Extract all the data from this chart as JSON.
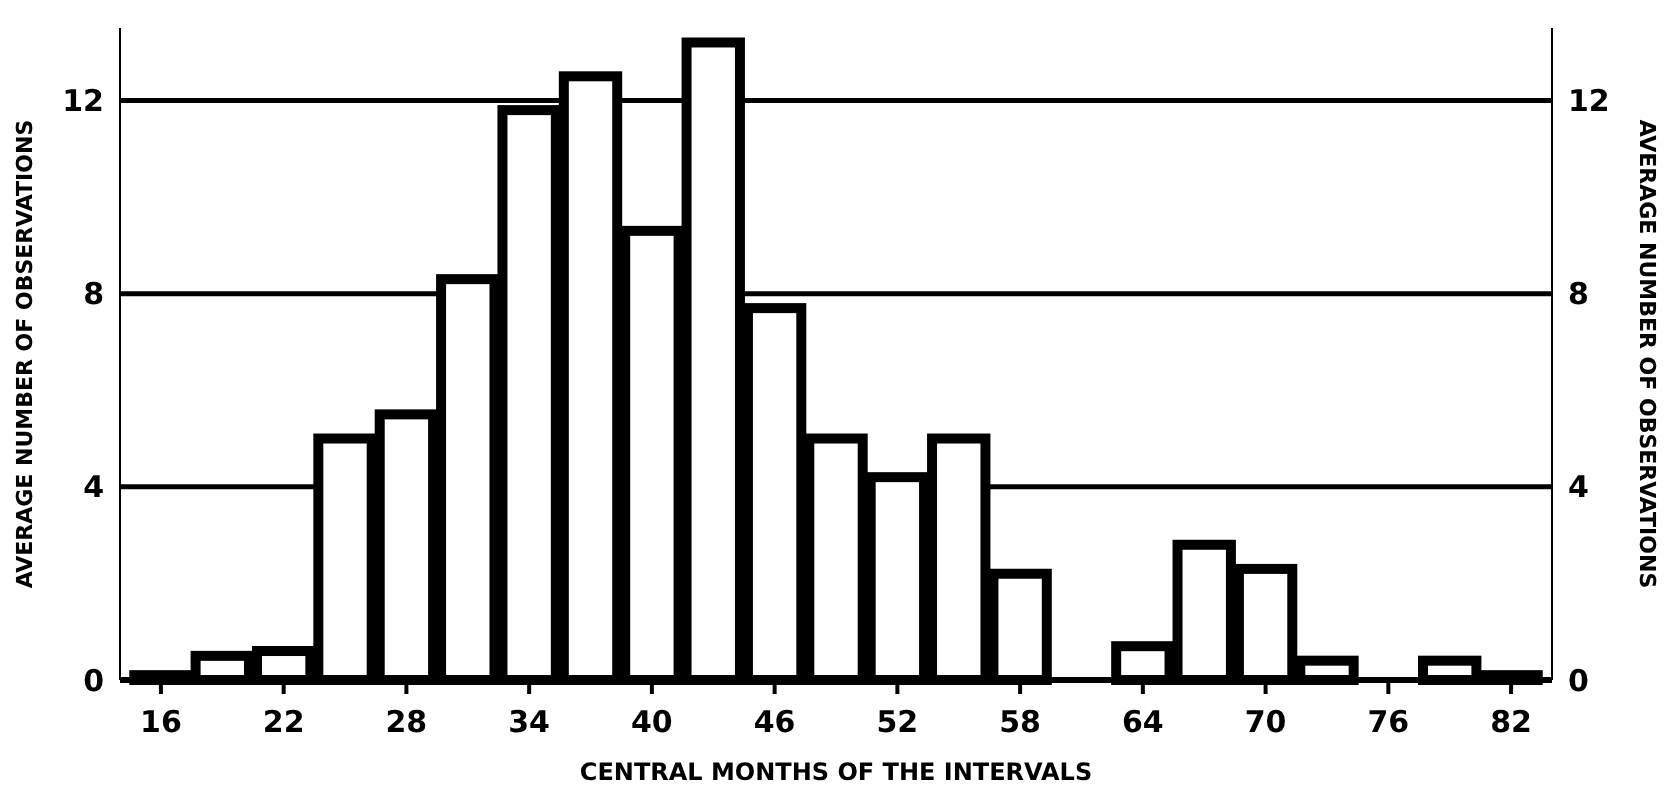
{
  "chart_data": {
    "type": "histogram",
    "xlabel": "CENTRAL MONTHS OF THE INTERVALS",
    "ylabel": "AVERAGE NUMBER OF OBSERVATIONS",
    "y2label": "AVERAGE NUMBER OF OBSERVATIONS",
    "bins": [
      14.5,
      17.5,
      20.5,
      23.5,
      26.5,
      29.5,
      32.5,
      35.5,
      38.5,
      41.5,
      44.5,
      47.5,
      50.5,
      53.5,
      56.5,
      59.5,
      62.5,
      65.5,
      68.5,
      71.5,
      74.5,
      77.5,
      80.5,
      83.5
    ],
    "values": [
      0.1,
      0.5,
      0.6,
      5.0,
      5.5,
      8.3,
      11.8,
      12.5,
      9.3,
      13.2,
      7.7,
      5.0,
      4.2,
      5.0,
      2.2,
      0,
      0.7,
      2.8,
      2.3,
      0.4,
      0,
      0.4,
      0.1
    ],
    "color": "#000000",
    "xlim": [
      14,
      84
    ],
    "xticks": [
      16,
      22,
      28,
      34,
      40,
      46,
      52,
      58,
      64,
      70,
      76,
      82
    ],
    "ylim": [
      0,
      13.5
    ],
    "yticks": [
      0,
      4,
      8,
      12
    ],
    "y2lim": [
      0,
      13.5
    ],
    "y2ticks": [
      0,
      4,
      8,
      12
    ],
    "grid": "y"
  }
}
